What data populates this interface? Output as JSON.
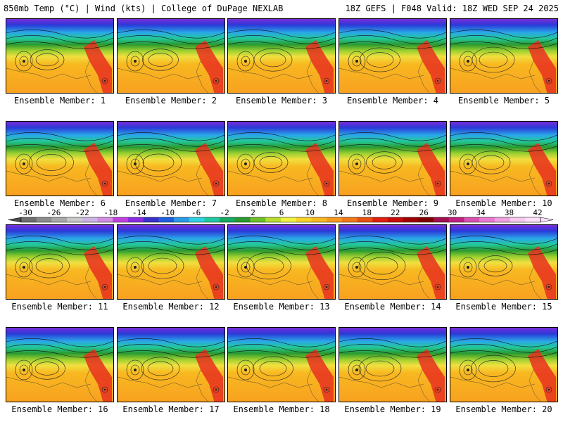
{
  "header": {
    "left": "850mb Temp (°C) | Wind (kts) | College of DuPage NEXLAB",
    "right": "18Z GEFS | F048 Valid: 18Z WED SEP 24 2025"
  },
  "member_label_prefix": "Ensemble Member: ",
  "members": [
    {
      "label": "Ensemble Member: 1"
    },
    {
      "label": "Ensemble Member: 2"
    },
    {
      "label": "Ensemble Member: 3"
    },
    {
      "label": "Ensemble Member: 4"
    },
    {
      "label": "Ensemble Member: 5"
    },
    {
      "label": "Ensemble Member: 6"
    },
    {
      "label": "Ensemble Member: 7"
    },
    {
      "label": "Ensemble Member: 8"
    },
    {
      "label": "Ensemble Member: 9"
    },
    {
      "label": "Ensemble Member: 10"
    },
    {
      "label": "Ensemble Member: 11"
    },
    {
      "label": "Ensemble Member: 12"
    },
    {
      "label": "Ensemble Member: 13"
    },
    {
      "label": "Ensemble Member: 14"
    },
    {
      "label": "Ensemble Member: 15"
    },
    {
      "label": "Ensemble Member: 16"
    },
    {
      "label": "Ensemble Member: 17"
    },
    {
      "label": "Ensemble Member: 18"
    },
    {
      "label": "Ensemble Member: 19"
    },
    {
      "label": "Ensemble Member: 20"
    }
  ],
  "colorbar": {
    "ticks": [
      "-30",
      "-26",
      "-22",
      "-18",
      "-14",
      "-10",
      "-6",
      "-2",
      "2",
      "6",
      "10",
      "14",
      "18",
      "22",
      "26",
      "30",
      "34",
      "38",
      "42"
    ],
    "colors": [
      "#6e6e6e",
      "#8c8c8c",
      "#a8a8a8",
      "#c8c8c8",
      "#cbb3e6",
      "#d28ce0",
      "#c040e0",
      "#8a2be2",
      "#3a2fc8",
      "#1f5fe0",
      "#2a9be8",
      "#2fd0e0",
      "#20c8a0",
      "#18a860",
      "#2a9a30",
      "#6cbf2a",
      "#b8dc30",
      "#f0f040",
      "#f8d028",
      "#f8b820",
      "#f89820",
      "#f07818",
      "#e85010",
      "#e02010",
      "#c80a0a",
      "#a00000",
      "#800000",
      "#a01050",
      "#c02080",
      "#d850b0",
      "#e878d0",
      "#f0a0e0",
      "#f8c8f0",
      "#fde0f8"
    ]
  }
}
